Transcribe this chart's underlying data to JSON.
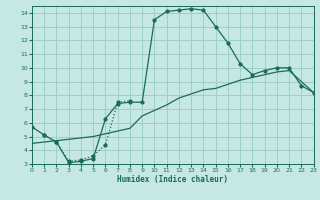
{
  "xlabel": "Humidex (Indice chaleur)",
  "xlim": [
    0,
    23
  ],
  "ylim": [
    3,
    14.5
  ],
  "xticks": [
    0,
    1,
    2,
    3,
    4,
    5,
    6,
    7,
    8,
    9,
    10,
    11,
    12,
    13,
    14,
    15,
    16,
    17,
    18,
    19,
    20,
    21,
    22,
    23
  ],
  "yticks": [
    3,
    4,
    5,
    6,
    7,
    8,
    9,
    10,
    11,
    12,
    13,
    14
  ],
  "bg_color": "#c5e8e4",
  "line_color": "#1a6b5a",
  "grid_color": "#9ecfca",
  "curve1_x": [
    0,
    1,
    2,
    3,
    4,
    5,
    6,
    7,
    8,
    9,
    10,
    11,
    12,
    13,
    14,
    15,
    16,
    17,
    18,
    19,
    20,
    21,
    22,
    23
  ],
  "curve1_y": [
    5.7,
    5.1,
    4.6,
    3.1,
    3.2,
    3.4,
    6.3,
    7.4,
    7.5,
    7.5,
    13.5,
    14.1,
    14.2,
    14.3,
    14.2,
    13.0,
    11.8,
    10.3,
    9.5,
    9.8,
    10.0,
    10.0,
    8.7,
    8.2
  ],
  "curve2_x": [
    1,
    2,
    3,
    4,
    5,
    6,
    7,
    8
  ],
  "curve2_y": [
    5.1,
    4.6,
    3.2,
    3.3,
    3.6,
    4.4,
    7.5,
    7.6
  ],
  "curve3_x": [
    0,
    1,
    2,
    3,
    4,
    5,
    6,
    7,
    8,
    9,
    10,
    11,
    12,
    13,
    14,
    15,
    16,
    17,
    18,
    19,
    20,
    21,
    22,
    23
  ],
  "curve3_y": [
    4.5,
    4.6,
    4.7,
    4.8,
    4.9,
    5.0,
    5.2,
    5.4,
    5.6,
    6.5,
    6.9,
    7.3,
    7.8,
    8.1,
    8.4,
    8.5,
    8.8,
    9.1,
    9.3,
    9.5,
    9.7,
    9.8,
    9.0,
    8.2
  ]
}
